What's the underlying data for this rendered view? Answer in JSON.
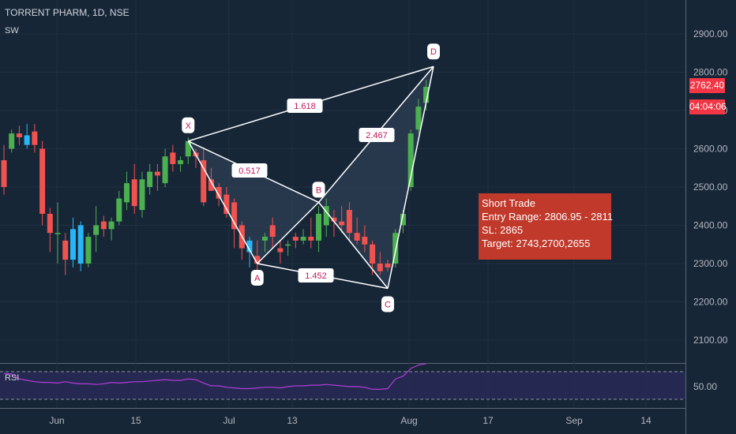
{
  "header": {
    "title": "TORRENT PHARM, 1D, NSE",
    "indicator": "SW"
  },
  "colors": {
    "background": "#172637",
    "up": "#4caf50",
    "down": "#ef5350",
    "cyan": "#29b6f6",
    "pattern_line": "#ffffff",
    "rsi_line": "#b13cd6",
    "price_tag": "#f23645",
    "info_box": "#c0392b"
  },
  "chart_data": [
    {
      "type": "candlestick",
      "y_axis": {
        "ticks": [
          "2900.00",
          "2800.00",
          "2700.00",
          "2600.00",
          "2500.00",
          "2400.00",
          "2300.00",
          "2200.00",
          "2100.00"
        ],
        "ylim": [
          2035,
          2985
        ]
      },
      "x_axis": {
        "ticks": [
          "Jun",
          "15",
          "Jul",
          "13",
          "Aug",
          "17",
          "Sep",
          "14"
        ]
      },
      "candles": [
        {
          "date": "May 27",
          "o": 2570,
          "h": 2610,
          "l": 2480,
          "c": 2500
        },
        {
          "date": "May 28",
          "o": 2600,
          "h": 2650,
          "l": 2590,
          "c": 2640
        },
        {
          "date": "May 29",
          "o": 2640,
          "h": 2660,
          "l": 2610,
          "c": 2630
        },
        {
          "date": "Jun 1",
          "o": 2635,
          "h": 2665,
          "l": 2600,
          "c": 2610
        },
        {
          "date": "Jun 2",
          "o": 2645,
          "h": 2665,
          "l": 2590,
          "c": 2610
        },
        {
          "date": "Jun 3",
          "o": 2600,
          "h": 2620,
          "l": 2400,
          "c": 2430
        },
        {
          "date": "Jun 4",
          "o": 2430,
          "h": 2445,
          "l": 2330,
          "c": 2380
        },
        {
          "date": "Jun 5",
          "o": 2380,
          "h": 2460,
          "l": 2300,
          "c": 2380
        },
        {
          "date": "Jun 8",
          "o": 2360,
          "h": 2380,
          "l": 2270,
          "c": 2310
        },
        {
          "date": "Jun 9",
          "o": 2310,
          "h": 2420,
          "l": 2290,
          "c": 2390
        },
        {
          "date": "Jun 10",
          "o": 2400,
          "h": 2410,
          "l": 2280,
          "c": 2300
        },
        {
          "date": "Jun 11",
          "o": 2300,
          "h": 2380,
          "l": 2290,
          "c": 2370
        },
        {
          "date": "Jun 12",
          "o": 2375,
          "h": 2450,
          "l": 2330,
          "c": 2400
        },
        {
          "date": "Jun 15",
          "o": 2410,
          "h": 2425,
          "l": 2370,
          "c": 2390
        },
        {
          "date": "Jun 16",
          "o": 2390,
          "h": 2420,
          "l": 2360,
          "c": 2410
        },
        {
          "date": "Jun 17",
          "o": 2410,
          "h": 2490,
          "l": 2400,
          "c": 2470
        },
        {
          "date": "Jun 18",
          "o": 2460,
          "h": 2540,
          "l": 2440,
          "c": 2510
        },
        {
          "date": "Jun 19",
          "o": 2520,
          "h": 2560,
          "l": 2430,
          "c": 2450
        },
        {
          "date": "Jun 22",
          "o": 2440,
          "h": 2540,
          "l": 2420,
          "c": 2520
        },
        {
          "date": "Jun 23",
          "o": 2500,
          "h": 2560,
          "l": 2480,
          "c": 2540
        },
        {
          "date": "Jun 24",
          "o": 2540,
          "h": 2560,
          "l": 2490,
          "c": 2530
        },
        {
          "date": "Jun 25",
          "o": 2510,
          "h": 2600,
          "l": 2500,
          "c": 2580
        },
        {
          "date": "Jun 26",
          "o": 2590,
          "h": 2610,
          "l": 2540,
          "c": 2560
        },
        {
          "date": "Jun 29",
          "o": 2560,
          "h": 2580,
          "l": 2540,
          "c": 2570
        },
        {
          "date": "Jun 30",
          "o": 2580,
          "h": 2630,
          "l": 2560,
          "c": 2620
        },
        {
          "date": "Jul 1",
          "o": 2590,
          "h": 2600,
          "l": 2550,
          "c": 2580
        },
        {
          "date": "Jul 2",
          "o": 2570,
          "h": 2600,
          "l": 2450,
          "c": 2460
        },
        {
          "date": "Jul 3",
          "o": 2520,
          "h": 2550,
          "l": 2490,
          "c": 2490
        },
        {
          "date": "Jul 6",
          "o": 2500,
          "h": 2510,
          "l": 2450,
          "c": 2470
        },
        {
          "date": "Jul 7",
          "o": 2480,
          "h": 2500,
          "l": 2420,
          "c": 2430
        },
        {
          "date": "Jul 8",
          "o": 2460,
          "h": 2470,
          "l": 2340,
          "c": 2390
        },
        {
          "date": "Jul 9",
          "o": 2400,
          "h": 2410,
          "l": 2310,
          "c": 2340
        },
        {
          "date": "Jul 10",
          "o": 2360,
          "h": 2370,
          "l": 2290,
          "c": 2330
        },
        {
          "date": "Jul 13",
          "o": 2320,
          "h": 2360,
          "l": 2280,
          "c": 2300
        },
        {
          "date": "Jul 14",
          "o": 2360,
          "h": 2380,
          "l": 2330,
          "c": 2370
        },
        {
          "date": "Jul 15",
          "o": 2400,
          "h": 2420,
          "l": 2340,
          "c": 2370
        },
        {
          "date": "Jul 16",
          "o": 2340,
          "h": 2360,
          "l": 2300,
          "c": 2330
        },
        {
          "date": "Jul 17",
          "o": 2350,
          "h": 2360,
          "l": 2320,
          "c": 2350
        },
        {
          "date": "Jul 20",
          "o": 2370,
          "h": 2380,
          "l": 2340,
          "c": 2360
        },
        {
          "date": "Jul 21",
          "o": 2360,
          "h": 2390,
          "l": 2350,
          "c": 2370
        },
        {
          "date": "Jul 22",
          "o": 2370,
          "h": 2420,
          "l": 2340,
          "c": 2360
        },
        {
          "date": "Jul 23",
          "o": 2360,
          "h": 2450,
          "l": 2330,
          "c": 2430
        },
        {
          "date": "Jul 24",
          "o": 2400,
          "h": 2470,
          "l": 2370,
          "c": 2450
        },
        {
          "date": "Jul 27",
          "o": 2420,
          "h": 2440,
          "l": 2370,
          "c": 2410
        },
        {
          "date": "Jul 28",
          "o": 2410,
          "h": 2450,
          "l": 2380,
          "c": 2400
        },
        {
          "date": "Jul 29",
          "o": 2440,
          "h": 2460,
          "l": 2360,
          "c": 2380
        },
        {
          "date": "Jul 30",
          "o": 2380,
          "h": 2420,
          "l": 2350,
          "c": 2360
        },
        {
          "date": "Jul 31",
          "o": 2370,
          "h": 2400,
          "l": 2330,
          "c": 2350
        },
        {
          "date": "Aug 3",
          "o": 2350,
          "h": 2360,
          "l": 2270,
          "c": 2300
        },
        {
          "date": "Aug 4",
          "o": 2300,
          "h": 2330,
          "l": 2270,
          "c": 2280
        },
        {
          "date": "Aug 5",
          "o": 2300,
          "h": 2310,
          "l": 2280,
          "c": 2290
        },
        {
          "date": "Aug 6",
          "o": 2300,
          "h": 2390,
          "l": 2290,
          "c": 2380
        },
        {
          "date": "Aug 7",
          "o": 2400,
          "h": 2440,
          "l": 2380,
          "c": 2430
        },
        {
          "date": "Aug 10",
          "o": 2500,
          "h": 2650,
          "l": 2490,
          "c": 2640
        },
        {
          "date": "Aug 11",
          "o": 2650,
          "h": 2730,
          "l": 2640,
          "c": 2710
        },
        {
          "date": "Aug 12",
          "o": 2720,
          "h": 2780,
          "l": 2700,
          "c": 2762
        }
      ],
      "pattern": {
        "points": [
          {
            "label": "X",
            "date": "Jun 30",
            "price": 2620
          },
          {
            "label": "A",
            "date": "Jul 13",
            "price": 2300
          },
          {
            "label": "B",
            "date": "Jul 23",
            "price": 2460
          },
          {
            "label": "C",
            "date": "Aug 5",
            "price": 2235
          },
          {
            "label": "D",
            "date": "Aug 14",
            "price": 2815
          }
        ],
        "ratios": [
          {
            "text": "0.517",
            "between": "X-B"
          },
          {
            "text": "1.618",
            "between": "X-D"
          },
          {
            "text": "2.467",
            "between": "B-D"
          },
          {
            "text": "1.452",
            "between": "A-C"
          }
        ]
      },
      "last_price": "2762.40",
      "countdown": "04:04:06"
    },
    {
      "type": "line",
      "name": "RSI",
      "y_axis": {
        "ticks": [
          "50.00"
        ]
      },
      "values": [
        68,
        67,
        60,
        58,
        56,
        55,
        55,
        54,
        56,
        54,
        53,
        53,
        52,
        53,
        55,
        54,
        55,
        56,
        56,
        57,
        58,
        59,
        58,
        58,
        60,
        59,
        54,
        50,
        50,
        48,
        47,
        46,
        46,
        47,
        48,
        48,
        47,
        49,
        50,
        50,
        51,
        51,
        52,
        51,
        50,
        49,
        49,
        48,
        45,
        45,
        46,
        60,
        64,
        75,
        80,
        82
      ]
    }
  ],
  "annotation": {
    "title": "Short Trade",
    "entry": "Entry Range: 2806.95 - 2811",
    "sl": "SL: 2865",
    "target": "Target: 2743,2700,2655"
  }
}
